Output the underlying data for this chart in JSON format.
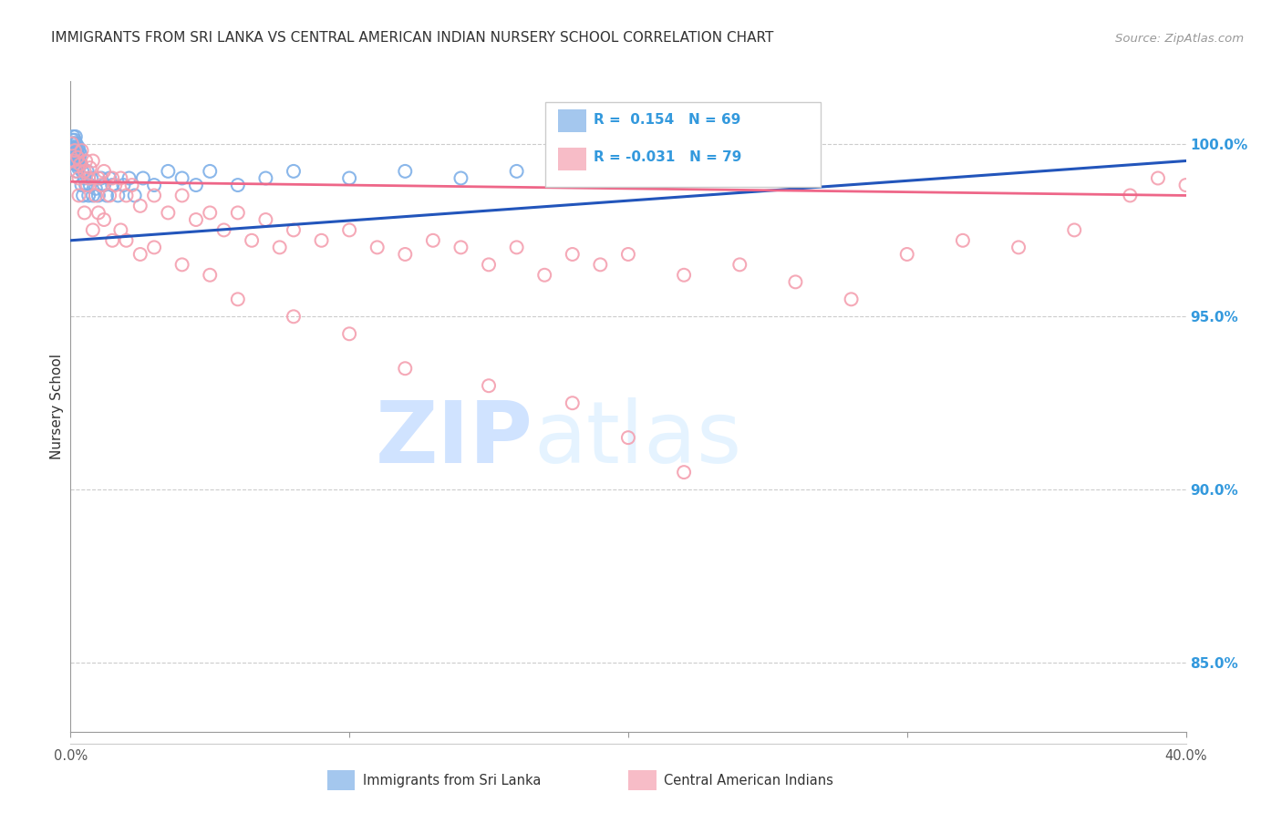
{
  "title": "IMMIGRANTS FROM SRI LANKA VS CENTRAL AMERICAN INDIAN NURSERY SCHOOL CORRELATION CHART",
  "source_text": "Source: ZipAtlas.com",
  "ylabel": "Nursery School",
  "right_yticks": [
    85.0,
    90.0,
    95.0,
    100.0
  ],
  "xlim": [
    0.0,
    40.0
  ],
  "ylim": [
    83.0,
    101.8
  ],
  "blue_color": "#7EB0E8",
  "pink_color": "#F4A0B0",
  "trendline_blue": "#2255BB",
  "trendline_pink": "#EE6688",
  "trendline_blue_dashed": "#AACCEE",
  "grid_color": "#CCCCCC",
  "title_color": "#333333",
  "right_axis_color": "#3399DD",
  "sri_lanka_x": [
    0.02,
    0.04,
    0.05,
    0.06,
    0.07,
    0.08,
    0.09,
    0.1,
    0.1,
    0.12,
    0.13,
    0.14,
    0.15,
    0.15,
    0.16,
    0.17,
    0.18,
    0.18,
    0.19,
    0.2,
    0.2,
    0.21,
    0.22,
    0.23,
    0.24,
    0.25,
    0.26,
    0.27,
    0.28,
    0.29,
    0.3,
    0.32,
    0.35,
    0.37,
    0.4,
    0.42,
    0.45,
    0.5,
    0.55,
    0.6,
    0.65,
    0.7,
    0.75,
    0.8,
    0.9,
    1.0,
    1.1,
    1.2,
    1.3,
    1.4,
    1.5,
    1.7,
    1.9,
    2.1,
    2.3,
    2.6,
    3.0,
    3.5,
    4.0,
    4.5,
    5.0,
    6.0,
    7.0,
    8.0,
    10.0,
    12.0,
    14.0,
    16.0,
    18.0
  ],
  "sri_lanka_y": [
    99.8,
    100.0,
    99.6,
    99.9,
    100.1,
    99.7,
    100.0,
    99.5,
    100.2,
    99.8,
    100.0,
    99.6,
    99.9,
    100.1,
    99.7,
    100.0,
    99.5,
    100.2,
    99.4,
    99.8,
    100.0,
    99.6,
    99.2,
    99.8,
    99.5,
    99.7,
    99.4,
    99.9,
    99.3,
    99.6,
    99.8,
    99.5,
    99.7,
    99.4,
    98.8,
    99.2,
    98.5,
    99.0,
    98.8,
    99.2,
    98.5,
    98.8,
    99.0,
    98.5,
    98.7,
    98.5,
    99.0,
    98.8,
    98.5,
    99.0,
    98.8,
    98.5,
    98.8,
    99.0,
    98.5,
    99.0,
    98.8,
    99.2,
    99.0,
    98.8,
    99.2,
    98.8,
    99.0,
    99.2,
    99.0,
    99.2,
    99.0,
    99.2,
    99.0
  ],
  "central_x": [
    0.05,
    0.1,
    0.15,
    0.2,
    0.25,
    0.3,
    0.35,
    0.4,
    0.5,
    0.55,
    0.6,
    0.65,
    0.7,
    0.8,
    0.9,
    1.0,
    1.1,
    1.2,
    1.4,
    1.5,
    1.6,
    1.8,
    2.0,
    2.2,
    2.5,
    3.0,
    3.5,
    4.0,
    4.5,
    5.0,
    5.5,
    6.0,
    6.5,
    7.0,
    7.5,
    8.0,
    9.0,
    10.0,
    11.0,
    12.0,
    13.0,
    14.0,
    15.0,
    16.0,
    17.0,
    18.0,
    19.0,
    20.0,
    22.0,
    24.0,
    26.0,
    28.0,
    30.0,
    32.0,
    34.0,
    36.0,
    38.0,
    39.0,
    40.0,
    0.3,
    0.5,
    0.8,
    1.0,
    1.2,
    1.5,
    1.8,
    2.0,
    2.5,
    3.0,
    4.0,
    5.0,
    6.0,
    8.0,
    10.0,
    12.0,
    15.0,
    18.0,
    20.0,
    22.0
  ],
  "central_y": [
    100.0,
    99.5,
    99.8,
    99.2,
    99.6,
    99.0,
    99.4,
    99.8,
    99.2,
    99.5,
    98.8,
    99.0,
    99.3,
    99.5,
    98.5,
    99.0,
    98.8,
    99.2,
    98.5,
    99.0,
    98.8,
    99.0,
    98.5,
    98.8,
    98.2,
    98.5,
    98.0,
    98.5,
    97.8,
    98.0,
    97.5,
    98.0,
    97.2,
    97.8,
    97.0,
    97.5,
    97.2,
    97.5,
    97.0,
    96.8,
    97.2,
    97.0,
    96.5,
    97.0,
    96.2,
    96.8,
    96.5,
    96.8,
    96.2,
    96.5,
    96.0,
    95.5,
    96.8,
    97.2,
    97.0,
    97.5,
    98.5,
    99.0,
    98.8,
    98.5,
    98.0,
    97.5,
    98.0,
    97.8,
    97.2,
    97.5,
    97.2,
    96.8,
    97.0,
    96.5,
    96.2,
    95.5,
    95.0,
    94.5,
    93.5,
    93.0,
    92.5,
    91.5,
    90.5
  ]
}
